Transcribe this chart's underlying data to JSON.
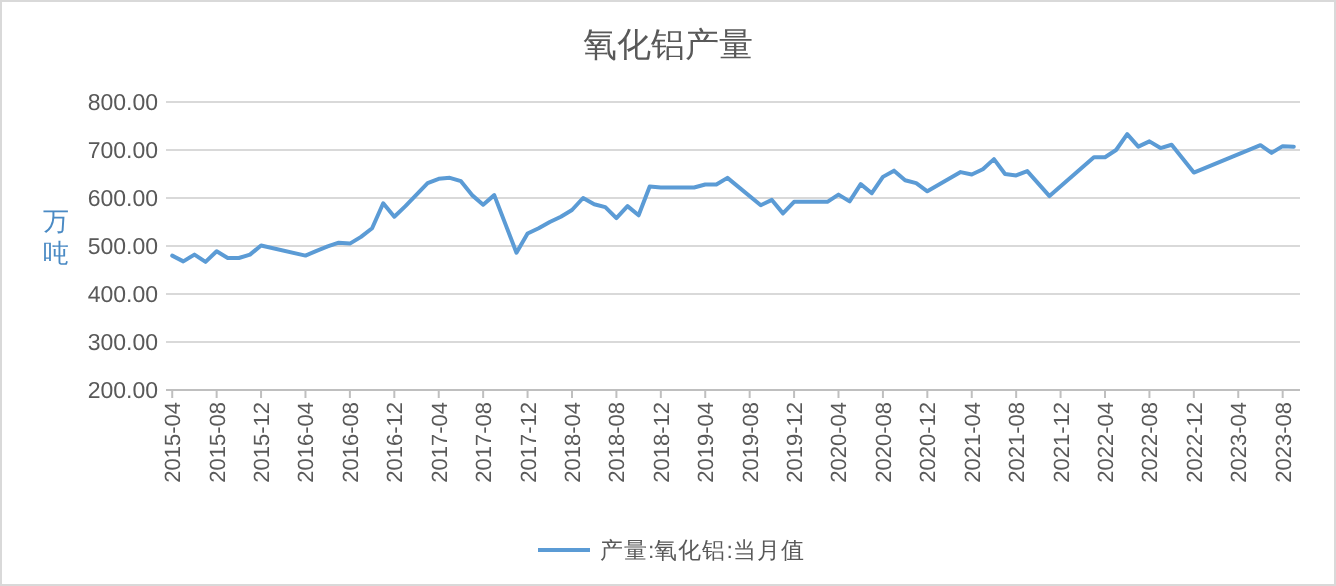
{
  "chart_data": {
    "type": "line",
    "title": "氧化铝产量",
    "ylabel": "万吨",
    "categories": [
      "2015-04",
      null,
      null,
      null,
      "2015-08",
      null,
      null,
      null,
      "2015-12",
      null,
      null,
      null,
      "2016-04",
      null,
      null,
      null,
      "2016-08",
      null,
      null,
      null,
      "2016-12",
      null,
      null,
      null,
      "2017-04",
      null,
      null,
      null,
      "2017-08",
      null,
      null,
      null,
      "2017-12",
      null,
      null,
      null,
      "2018-04",
      null,
      null,
      null,
      "2018-08",
      null,
      null,
      null,
      "2018-12",
      null,
      null,
      null,
      "2019-04",
      null,
      null,
      null,
      "2019-08",
      null,
      null,
      null,
      "2019-12",
      null,
      null,
      null,
      "2020-04",
      null,
      null,
      null,
      "2020-08",
      null,
      null,
      null,
      "2020-12",
      null,
      null,
      null,
      "2021-04",
      null,
      null,
      null,
      "2021-08",
      null,
      null,
      null,
      "2021-12",
      null,
      null,
      null,
      "2022-04",
      null,
      null,
      null,
      "2022-08",
      null,
      null,
      null,
      "2022-12",
      null,
      null,
      null,
      "2023-04",
      null,
      null,
      null,
      "2023-08",
      null
    ],
    "series": [
      {
        "name": "产量:氧化铝:当月值",
        "color": "#5b9bd5",
        "values": [
          480,
          468,
          482,
          467,
          489,
          475,
          475,
          482,
          501,
          null,
          null,
          null,
          480,
          490,
          499,
          507,
          505,
          519,
          537,
          589,
          561,
          583,
          607,
          631,
          640,
          642,
          635,
          606,
          586,
          606,
          null,
          486,
          526,
          537,
          550,
          561,
          575,
          600,
          587,
          581,
          558,
          583,
          564,
          624,
          622,
          null,
          null,
          622,
          628,
          628,
          642,
          null,
          null,
          585,
          596,
          568,
          592,
          null,
          null,
          592,
          607,
          593,
          629,
          610,
          644,
          657,
          637,
          631,
          614,
          null,
          null,
          654,
          649,
          660,
          681,
          650,
          647,
          656,
          null,
          604,
          null,
          null,
          null,
          685,
          685,
          700,
          733,
          707,
          718,
          704,
          711,
          null,
          653,
          null,
          null,
          null,
          null,
          null,
          710,
          694,
          708,
          707
        ]
      }
    ],
    "ylim": [
      200,
      800
    ],
    "yticks": [
      {
        "value": 200,
        "label": "200.00"
      },
      {
        "value": 300,
        "label": "300.00"
      },
      {
        "value": 400,
        "label": "400.00"
      },
      {
        "value": 500,
        "label": "500.00"
      },
      {
        "value": 600,
        "label": "600.00"
      },
      {
        "value": 700,
        "label": "700.00"
      },
      {
        "value": 800,
        "label": "800.00"
      }
    ],
    "grid": "y",
    "legend": "bottom",
    "marker": "none",
    "line_style": "solid"
  }
}
